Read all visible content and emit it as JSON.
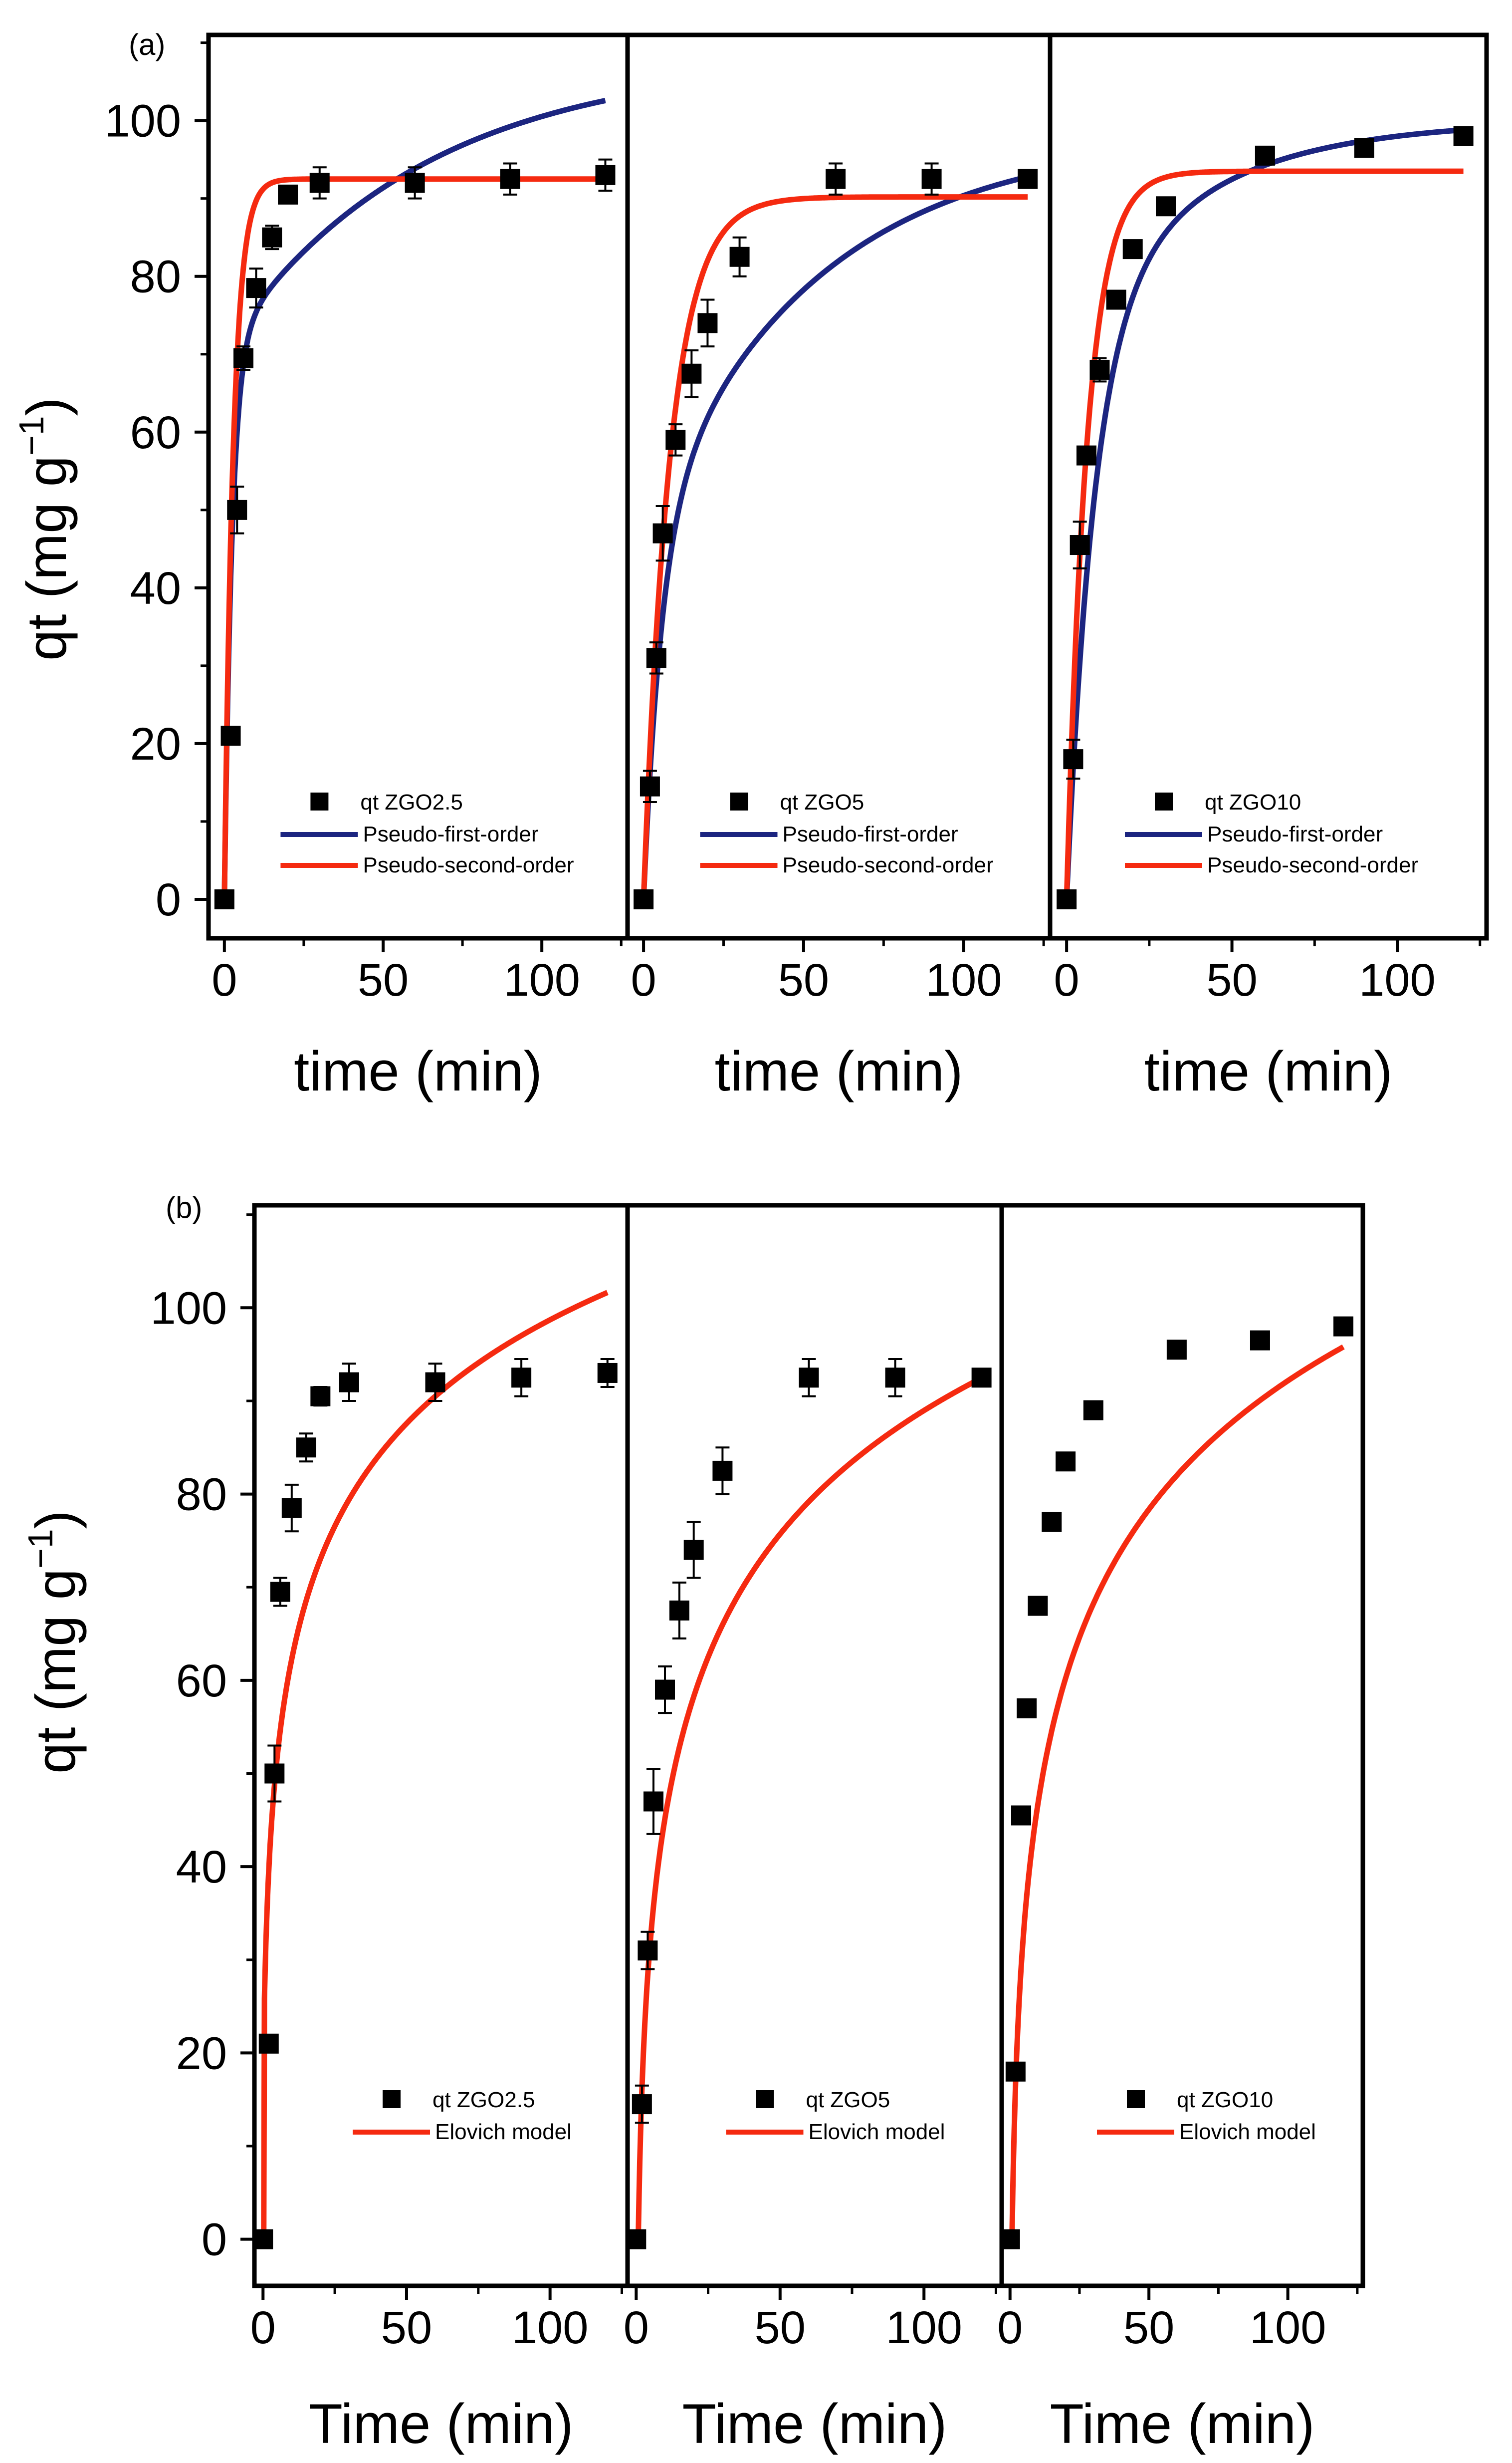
{
  "figure": {
    "panel_labels": [
      "(a)",
      "(b)"
    ]
  },
  "colors": {
    "pfo": "#1c2580",
    "pso": "#f52a10",
    "elovich": "#f52a10",
    "points": "#000000",
    "axes": "#000000"
  },
  "chart_data": [
    {
      "type": "scatter",
      "panel": "(a)",
      "sample": "ZGO2.5",
      "xlabel": "time (min)",
      "ylabel": "qt (mg g−1)",
      "xlim": [
        -5,
        127
      ],
      "ylim": [
        -5,
        111
      ],
      "xticks": [
        0,
        50,
        100
      ],
      "yticks": [
        0,
        20,
        40,
        60,
        80,
        100
      ],
      "legend": {
        "position": "bottom-center",
        "entries": [
          "qt ZGO2.5",
          "Pseudo-first-order",
          "Pseudo-second-order"
        ]
      },
      "points": {
        "x": [
          0,
          2,
          4,
          6,
          10,
          15,
          20,
          30,
          60,
          90,
          120
        ],
        "y": [
          0,
          21,
          50,
          69.5,
          78.5,
          85,
          90.5,
          92,
          92,
          92.5,
          93
        ],
        "err": [
          0,
          0,
          3,
          1.5,
          2.5,
          1.5,
          1,
          2,
          2,
          2,
          2
        ]
      },
      "series": [
        {
          "name": "Pseudo-first-order",
          "model": "pfo",
          "x_end": 120,
          "params": {
            "a": 71,
            "b": 37,
            "k": 0.42,
            "k2": 0.016
          }
        },
        {
          "name": "Pseudo-second-order",
          "model": "pso",
          "x_end": 120,
          "params": {
            "qe": 92.5,
            "k": 0.35
          }
        }
      ]
    },
    {
      "type": "scatter",
      "panel": "(a)",
      "sample": "ZGO5",
      "xlabel": "time (min)",
      "ylabel": "qt (mg g−1)",
      "xlim": [
        -5,
        127
      ],
      "ylim": [
        -5,
        111
      ],
      "xticks": [
        0,
        50,
        100
      ],
      "yticks": [
        0,
        20,
        40,
        60,
        80,
        100
      ],
      "legend": {
        "position": "bottom-center",
        "entries": [
          "qt ZGO5",
          "Pseudo-first-order",
          "Pseudo-second-order"
        ]
      },
      "points": {
        "x": [
          0,
          2,
          4,
          6,
          10,
          15,
          20,
          30,
          60,
          90,
          120
        ],
        "y": [
          0,
          14.5,
          31,
          47,
          59,
          67.5,
          74,
          82.5,
          92.5,
          92.5,
          92.5
        ],
        "err": [
          0,
          2,
          2,
          3.5,
          2,
          3,
          3,
          2.5,
          2,
          2,
          1
        ]
      },
      "series": [
        {
          "name": "Pseudo-first-order",
          "model": "pfo",
          "x_end": 120,
          "params": {
            "a": 47,
            "b": 51,
            "k": 0.18,
            "k2": 0.019
          }
        },
        {
          "name": "Pseudo-second-order",
          "model": "pso",
          "x_end": 120,
          "params": {
            "qe": 90.2,
            "k": 0.12
          }
        }
      ]
    },
    {
      "type": "scatter",
      "panel": "(a)",
      "sample": "ZGO10",
      "xlabel": "time (min)",
      "ylabel": "qt (mg g−1)",
      "xlim": [
        -5,
        127
      ],
      "ylim": [
        -5,
        111
      ],
      "xticks": [
        0,
        50,
        100
      ],
      "yticks": [
        0,
        20,
        40,
        60,
        80,
        100
      ],
      "legend": {
        "position": "bottom-center",
        "entries": [
          "qt ZGO10",
          "Pseudo-first-order",
          "Pseudo-second-order"
        ]
      },
      "points": {
        "x": [
          0,
          2,
          4,
          6,
          10,
          15,
          20,
          30,
          60,
          90,
          120
        ],
        "y": [
          0,
          18,
          45.5,
          57,
          68,
          77,
          83.5,
          89,
          95.5,
          96.5,
          98
        ],
        "err": [
          0,
          2.5,
          3,
          1,
          1.5,
          1,
          0.5,
          0.5,
          0.5,
          0.5,
          0.5
        ]
      },
      "series": [
        {
          "name": "Pseudo-first-order",
          "model": "pfo",
          "x_end": 120,
          "params": {
            "a": 73,
            "b": 27,
            "k": 0.12,
            "k2": 0.026
          }
        },
        {
          "name": "Pseudo-second-order",
          "model": "pso",
          "x_end": 120,
          "params": {
            "qe": 93.5,
            "k": 0.16
          }
        }
      ]
    },
    {
      "type": "scatter",
      "panel": "(b)",
      "sample": "ZGO2.5",
      "xlabel": "Time (min)",
      "ylabel": "qt (mg g−1)",
      "xlim": [
        -3,
        127
      ],
      "ylim": [
        -5,
        111
      ],
      "xticks": [
        0,
        50,
        100
      ],
      "yticks": [
        0,
        20,
        40,
        60,
        80,
        100
      ],
      "legend": {
        "position": "bottom-center",
        "entries": [
          "qt ZGO2.5",
          "Elovich model"
        ]
      },
      "points": {
        "x": [
          0,
          2,
          4,
          6,
          10,
          15,
          20,
          30,
          60,
          90,
          120
        ],
        "y": [
          0,
          21,
          50,
          69.5,
          78.5,
          85,
          90.5,
          92,
          92,
          92.5,
          93
        ],
        "err": [
          0,
          0,
          3,
          1.5,
          2.5,
          1.5,
          1,
          2,
          2,
          2,
          1.5
        ]
      },
      "series": [
        {
          "name": "Elovich model",
          "model": "elovich",
          "x_end": 120,
          "params": {
            "a": 24,
            "k": 16.2,
            "c": 0.62,
            "x0": 0.4
          }
        }
      ]
    },
    {
      "type": "scatter",
      "panel": "(b)",
      "sample": "ZGO5",
      "xlabel": "Time (min)",
      "ylabel": "qt (mg g−1)",
      "xlim": [
        -3,
        127
      ],
      "ylim": [
        -5,
        111
      ],
      "xticks": [
        0,
        50,
        100
      ],
      "yticks": [
        0,
        20,
        40,
        60,
        80,
        100
      ],
      "legend": {
        "position": "bottom-center",
        "entries": [
          "qt ZGO5",
          "Elovich model"
        ]
      },
      "points": {
        "x": [
          0,
          2,
          4,
          6,
          10,
          15,
          20,
          30,
          60,
          90,
          120
        ],
        "y": [
          0,
          14.5,
          31,
          47,
          59,
          67.5,
          74,
          82.5,
          92.5,
          92.5,
          92.5
        ],
        "err": [
          0,
          2,
          2,
          3.5,
          2.5,
          3,
          3,
          2.5,
          2,
          2,
          0
        ]
      },
      "series": [
        {
          "name": "Elovich model",
          "model": "elovich",
          "x_end": 120,
          "params": {
            "a": 0.5,
            "k": 19.2,
            "c": 0.25,
            "x0": 0.3
          }
        }
      ]
    },
    {
      "type": "scatter",
      "panel": "(b)",
      "sample": "ZGO10",
      "xlabel": "Time (min)",
      "ylabel": "qt (mg g−1)",
      "xlim": [
        -3,
        127
      ],
      "ylim": [
        -5,
        111
      ],
      "xticks": [
        0,
        50,
        100
      ],
      "yticks": [
        0,
        20,
        40,
        60,
        80,
        100
      ],
      "legend": {
        "position": "bottom-center",
        "entries": [
          "qt ZGO10",
          "Elovich model"
        ]
      },
      "points": {
        "x": [
          0,
          2,
          4,
          6,
          10,
          15,
          20,
          30,
          60,
          90,
          120
        ],
        "y": [
          0,
          18,
          45.5,
          57,
          68,
          77,
          83.5,
          89,
          95.5,
          96.5,
          98
        ],
        "err": [
          0,
          0,
          0,
          0,
          0,
          0,
          0,
          0,
          0,
          0,
          0
        ]
      },
      "series": [
        {
          "name": "Elovich model",
          "model": "elovich",
          "x_end": 120,
          "params": {
            "a": 0,
            "k": 20,
            "c": 0.3,
            "x0": 0.3
          }
        }
      ]
    }
  ]
}
